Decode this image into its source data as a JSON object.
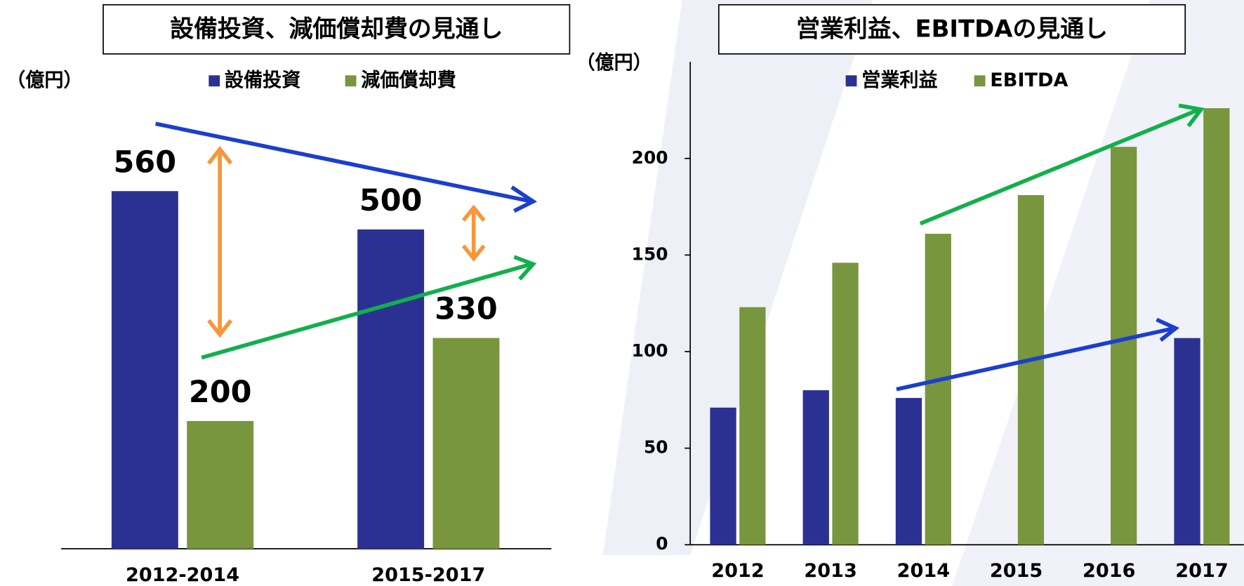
{
  "chart_data": [
    {
      "type": "bar",
      "title": "設備投資、減価償却費の見通し",
      "unit": "（億円）",
      "categories": [
        "2012-2014",
        "2015-2017"
      ],
      "series": [
        {
          "name": "設備投資",
          "color": "#2b3192",
          "values": [
            560,
            500
          ]
        },
        {
          "name": "減価償却費",
          "color": "#77963d",
          "values": [
            200,
            330
          ]
        }
      ]
    },
    {
      "type": "bar",
      "title": "営業利益、EBITDAの見通し",
      "unit": "（億円）",
      "categories": [
        "2012",
        "2013",
        "2014",
        "2015",
        "2016",
        "2017"
      ],
      "series": [
        {
          "name": "営業利益",
          "color": "#2b3192",
          "values": [
            71,
            80,
            76,
            null,
            null,
            107
          ]
        },
        {
          "name": "EBITDA",
          "color": "#77963d",
          "values": [
            123,
            146,
            161,
            181,
            206,
            226
          ]
        }
      ],
      "ylim": [
        0,
        250
      ],
      "yticks": [
        0,
        50,
        100,
        150,
        200
      ]
    }
  ]
}
